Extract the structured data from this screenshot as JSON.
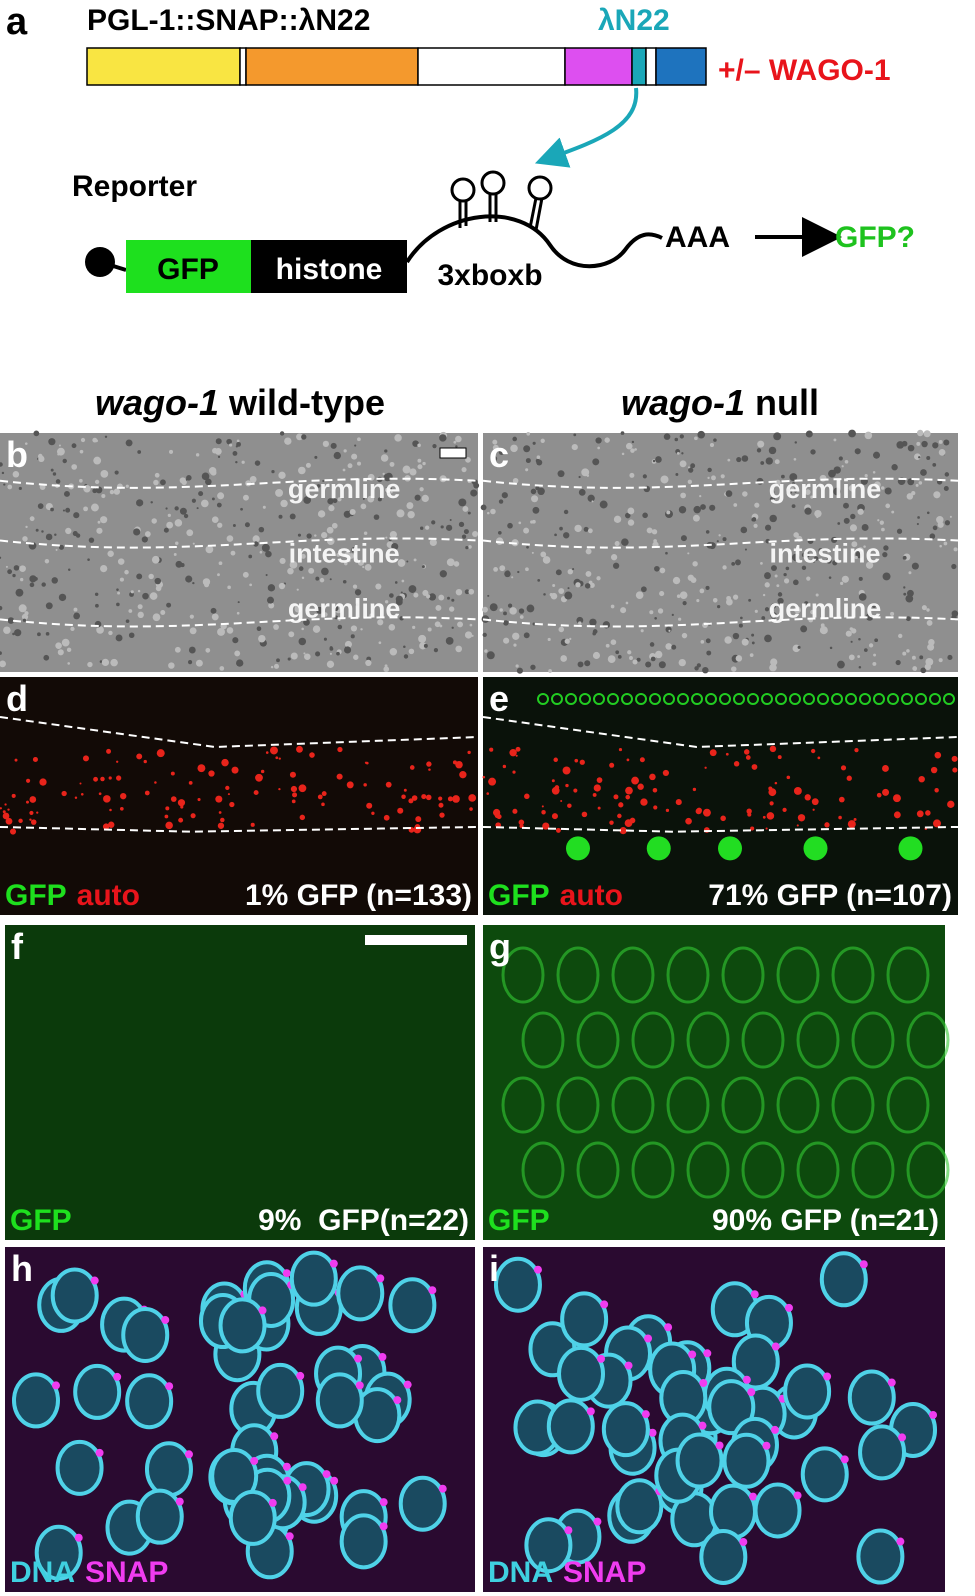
{
  "panel_a": {
    "label": "a",
    "construct": "PGL-1::SNAP::λN22",
    "tag": "λN22",
    "condition": "+/– WAGO-1",
    "reporter": "Reporter",
    "gfp": "GFP",
    "histone": "histone",
    "boxb": "3xboxb",
    "polya": "AAA",
    "output": "GFP?"
  },
  "columns": [
    {
      "gene": "wago-1",
      "genotype": "wild-type"
    },
    {
      "gene": "wago-1",
      "genotype": "null"
    }
  ],
  "panels": [
    {
      "label": "b",
      "regions": [
        "germline",
        "intestine",
        "germline"
      ]
    },
    {
      "label": "c",
      "regions": [
        "germline",
        "intestine",
        "germline"
      ]
    },
    {
      "label": "d",
      "channels": [
        "GFP",
        "auto"
      ],
      "result": "1% GFP (n=133)"
    },
    {
      "label": "e",
      "channels": [
        "GFP",
        "auto"
      ],
      "result": "71% GFP (n=107)"
    },
    {
      "label": "f",
      "channels": [
        "GFP"
      ],
      "result": "9%  GFP(n=22)"
    },
    {
      "label": "g",
      "channels": [
        "GFP"
      ],
      "result": "90% GFP (n=21)"
    },
    {
      "label": "h",
      "channels": [
        "DNA",
        "SNAP"
      ]
    },
    {
      "label": "i",
      "channels": [
        "DNA",
        "SNAP"
      ]
    }
  ]
}
